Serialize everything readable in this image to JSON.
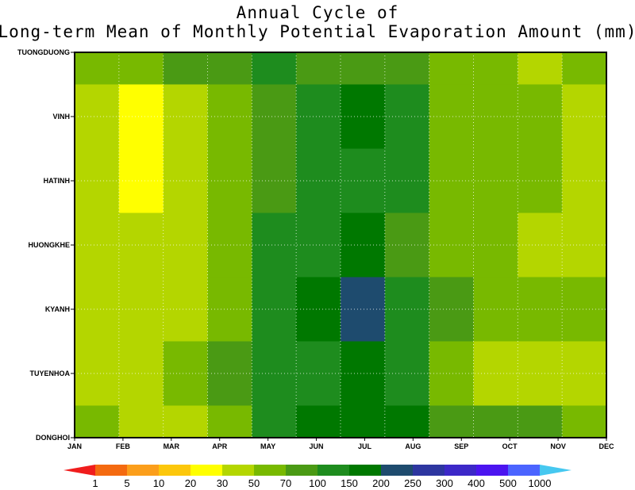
{
  "chart_data": {
    "type": "heatmap",
    "title": [
      "Annual Cycle of",
      "Long-term Mean of Monthly Potential Evaporation Amount (mm)"
    ],
    "x_categories": [
      "JAN",
      "FEB",
      "MAR",
      "APR",
      "MAY",
      "JUN",
      "JUL",
      "AUG",
      "SEP",
      "OCT",
      "NOV",
      "DEC"
    ],
    "y_tick_labels": [
      "DONGHOI",
      "TUYENHOA",
      "KYANH",
      "HUONGKHE",
      "HATINH",
      "VINH",
      "TUONGDUONG"
    ],
    "rows": [
      {
        "name": "TUONGDUONG",
        "values": [
          60,
          60,
          80,
          80,
          120,
          80,
          80,
          80,
          55,
          55,
          40,
          60
        ]
      },
      {
        "name": "VINH",
        "values": [
          40,
          25,
          40,
          55,
          80,
          120,
          175,
          120,
          55,
          55,
          55,
          40
        ]
      },
      {
        "name": "HATINH",
        "values": [
          40,
          25,
          40,
          55,
          80,
          120,
          120,
          120,
          55,
          55,
          55,
          40
        ]
      },
      {
        "name": "HUONGKHE",
        "values": [
          40,
          40,
          40,
          55,
          120,
          120,
          175,
          80,
          55,
          55,
          40,
          40
        ]
      },
      {
        "name": "KYANH",
        "values": [
          40,
          40,
          40,
          55,
          120,
          175,
          225,
          120,
          80,
          60,
          60,
          60
        ]
      },
      {
        "name": "TUYENHOA",
        "values": [
          40,
          40,
          60,
          80,
          120,
          120,
          175,
          120,
          55,
          40,
          40,
          40
        ]
      },
      {
        "name": "DONGHOI",
        "values": [
          60,
          40,
          40,
          55,
          120,
          175,
          175,
          175,
          80,
          80,
          80,
          60
        ]
      }
    ],
    "row_y_fractions": [
      0,
      0.0833,
      0.25,
      0.4167,
      0.5833,
      0.75,
      0.9167,
      1
    ],
    "colorbar": {
      "labels": [
        "1",
        "5",
        "10",
        "20",
        "30",
        "50",
        "70",
        "100",
        "150",
        "200",
        "250",
        "300",
        "400",
        "500",
        "1000"
      ],
      "thresholds": [
        1,
        5,
        10,
        20,
        30,
        50,
        70,
        100,
        150,
        200,
        250,
        300,
        400,
        500,
        1000
      ],
      "colors": [
        "#f01d1d",
        "#f46a10",
        "#fb9e1b",
        "#fcc70c",
        "#ffff00",
        "#b4d600",
        "#78b900",
        "#4a9a14",
        "#1e8c1e",
        "#007800",
        "#1e4b6e",
        "#2d36a0",
        "#3c28c8",
        "#4b14f0",
        "#4b64ff",
        "#4ba0ff",
        "#46c8f0"
      ]
    },
    "grid": "dotted"
  }
}
